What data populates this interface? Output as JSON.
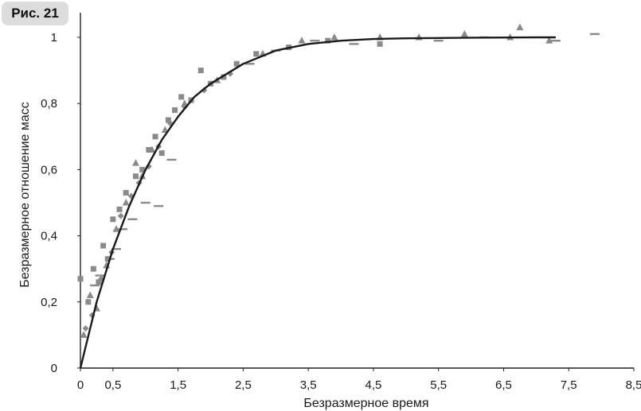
{
  "figure_label": "Рис. 21",
  "chart_data": {
    "type": "scatter",
    "title": "",
    "xlabel": "Безразмерное время",
    "ylabel": "Безразмерное отношение масс",
    "xlim": [
      0,
      8.5
    ],
    "ylim": [
      0,
      1
    ],
    "x_ticks": [
      "0",
      "0,5",
      "1,5",
      "2,5",
      "3,5",
      "4,5",
      "5,5",
      "6,5",
      "7,5",
      "8,5"
    ],
    "y_ticks": [
      "0",
      "0,2",
      "0,4",
      "0,6",
      "0,8",
      "1"
    ],
    "grid": false,
    "colors": {
      "curve": "#1a1a1a",
      "points": "#8a8a8a",
      "axis": "#222222"
    },
    "curve": {
      "x": [
        0,
        0.25,
        0.5,
        0.75,
        1.0,
        1.25,
        1.5,
        1.75,
        2.0,
        2.5,
        3.0,
        3.5,
        4.0,
        4.5,
        5.0,
        6.0,
        7.0,
        7.3
      ],
      "y": [
        0,
        0.2,
        0.36,
        0.49,
        0.6,
        0.69,
        0.76,
        0.82,
        0.86,
        0.92,
        0.96,
        0.98,
        0.99,
        0.995,
        0.997,
        0.999,
        1.0,
        1.0
      ]
    },
    "series": [
      {
        "marker": "square",
        "x": [
          0.0,
          0.12,
          0.2,
          0.28,
          0.35,
          0.42,
          0.5,
          0.6,
          0.7,
          0.85,
          0.95,
          1.05,
          1.15,
          1.25,
          1.35,
          1.45,
          1.55,
          1.7,
          1.85,
          2.0,
          2.2,
          2.4,
          2.7,
          3.2,
          3.8,
          4.6
        ],
        "y": [
          0.27,
          0.2,
          0.3,
          0.26,
          0.37,
          0.33,
          0.45,
          0.48,
          0.53,
          0.58,
          0.6,
          0.66,
          0.7,
          0.65,
          0.75,
          0.78,
          0.82,
          0.81,
          0.9,
          0.86,
          0.88,
          0.92,
          0.95,
          0.97,
          0.99,
          0.98
        ]
      },
      {
        "marker": "triangle",
        "x": [
          0.05,
          0.15,
          0.25,
          0.4,
          0.55,
          0.7,
          0.85,
          0.95,
          1.1,
          1.3,
          1.6,
          2.1,
          2.8,
          3.4,
          3.9,
          4.6,
          5.2,
          5.9,
          6.6,
          6.75,
          7.2
        ],
        "y": [
          0.1,
          0.22,
          0.18,
          0.31,
          0.42,
          0.5,
          0.62,
          0.58,
          0.66,
          0.72,
          0.8,
          0.87,
          0.95,
          0.99,
          1.0,
          1.0,
          1.0,
          1.01,
          1.0,
          1.03,
          0.99
        ]
      },
      {
        "marker": "dash",
        "x": [
          0.22,
          0.3,
          0.45,
          0.55,
          0.65,
          0.8,
          1.0,
          1.2,
          1.4,
          2.6,
          3.0,
          3.6,
          4.2,
          5.5,
          6.2,
          7.3,
          7.9
        ],
        "y": [
          0.25,
          0.28,
          0.33,
          0.36,
          0.42,
          0.45,
          0.5,
          0.49,
          0.63,
          0.92,
          0.96,
          0.99,
          0.98,
          0.99,
          1.0,
          0.99,
          1.01
        ]
      },
      {
        "marker": "diamond",
        "x": [
          0.08,
          0.18,
          0.32,
          0.48,
          0.62,
          0.78,
          0.9,
          1.05,
          1.2,
          1.38,
          1.6,
          1.9,
          2.3
        ],
        "y": [
          0.12,
          0.16,
          0.27,
          0.35,
          0.46,
          0.52,
          0.56,
          0.61,
          0.67,
          0.74,
          0.79,
          0.84,
          0.89
        ]
      }
    ]
  }
}
